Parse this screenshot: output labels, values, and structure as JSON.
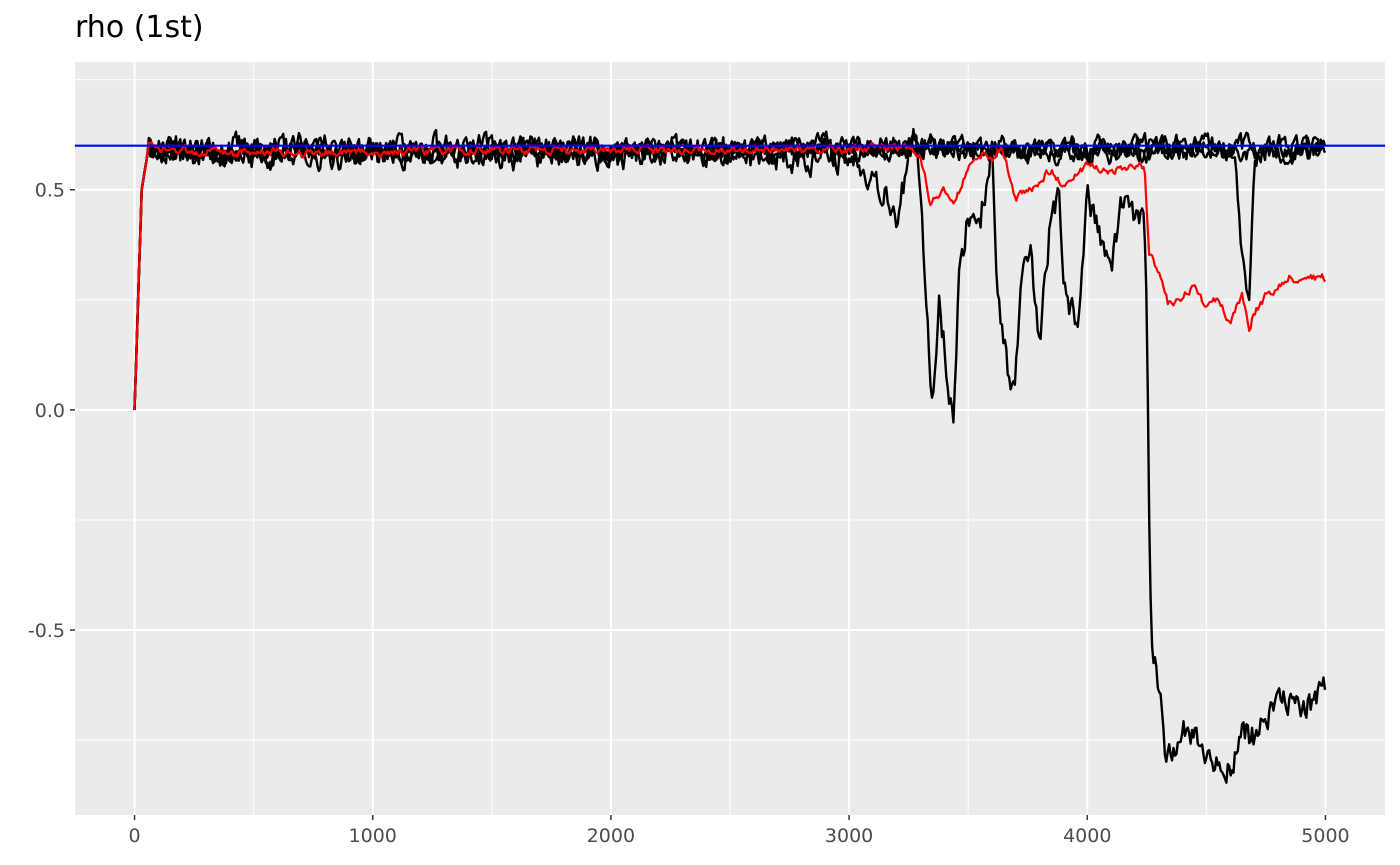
{
  "chart_data": {
    "type": "line",
    "title": "rho (1st)",
    "xlabel": "",
    "ylabel": "",
    "xlim": [
      -250,
      5250
    ],
    "ylim": [
      -0.92,
      0.79
    ],
    "x_ticks": [
      0,
      1000,
      2000,
      3000,
      4000,
      5000
    ],
    "x_tick_labels": [
      "0",
      "1000",
      "2000",
      "3000",
      "4000",
      "5000"
    ],
    "y_ticks": [
      -0.5,
      0.0,
      0.5
    ],
    "y_tick_labels": [
      "-0.5",
      "0.0",
      "0.5"
    ],
    "grid": true,
    "legend": "none",
    "reference_line": {
      "y": 0.6,
      "color": "#0000FF"
    },
    "colors": {
      "panel": "#EBEBEB",
      "grid": "#FFFFFF",
      "chains": "#000000",
      "mean": "#FF0000",
      "reference": "#0000FF"
    },
    "series": [
      {
        "color": "#000000",
        "noise": 0.018,
        "seed": 11,
        "x": [
          0,
          30,
          60,
          100,
          500,
          1000,
          1500,
          2000,
          2500,
          3000,
          3300,
          3600,
          4000,
          4500,
          5000
        ],
        "values": [
          0.0,
          0.5,
          0.6,
          0.59,
          0.585,
          0.585,
          0.59,
          0.59,
          0.59,
          0.59,
          0.59,
          0.59,
          0.585,
          0.585,
          0.585
        ]
      },
      {
        "color": "#000000",
        "noise": 0.022,
        "seed": 23,
        "x": [
          0,
          30,
          60,
          100,
          500,
          1000,
          1300,
          1500,
          2000,
          2500,
          3000,
          3300,
          3600,
          4000,
          4400,
          4600,
          5000
        ],
        "values": [
          0.0,
          0.5,
          0.6,
          0.59,
          0.585,
          0.59,
          0.6,
          0.6,
          0.595,
          0.59,
          0.6,
          0.6,
          0.59,
          0.59,
          0.595,
          0.6,
          0.59
        ]
      },
      {
        "color": "#000000",
        "noise": 0.03,
        "seed": 37,
        "x": [
          0,
          30,
          60,
          100,
          1000,
          2000,
          2800,
          3050,
          3150,
          3200,
          3280,
          3330,
          3350,
          3380,
          3400,
          3420,
          3440,
          3460,
          3500,
          3550,
          3600,
          3620,
          3650,
          3680,
          3700,
          3720,
          3760,
          3800,
          3840,
          3880,
          3900,
          3960,
          4000,
          4050,
          4100,
          4150,
          4200,
          4240,
          4250,
          4260,
          4270,
          4290,
          4330,
          4400,
          4450,
          4500,
          4560,
          4600,
          4650,
          4700,
          4750,
          4800,
          4850,
          4900,
          4950,
          5000
        ],
        "values": [
          0.0,
          0.5,
          0.6,
          0.59,
          0.585,
          0.58,
          0.58,
          0.57,
          0.5,
          0.45,
          0.62,
          0.2,
          0.02,
          0.26,
          0.15,
          0.05,
          0.0,
          0.28,
          0.45,
          0.43,
          0.6,
          0.25,
          0.17,
          0.02,
          0.08,
          0.25,
          0.35,
          0.16,
          0.4,
          0.48,
          0.25,
          0.2,
          0.5,
          0.4,
          0.32,
          0.47,
          0.43,
          0.42,
          0.2,
          -0.3,
          -0.52,
          -0.57,
          -0.78,
          -0.72,
          -0.74,
          -0.78,
          -0.82,
          -0.8,
          -0.74,
          -0.74,
          -0.7,
          -0.68,
          -0.65,
          -0.69,
          -0.66,
          -0.65
        ]
      },
      {
        "color": "#000000",
        "noise": 0.02,
        "seed": 51,
        "x": [
          0,
          30,
          60,
          100,
          1000,
          2000,
          2600,
          3000,
          3300,
          3600,
          4000,
          4400,
          4550,
          4620,
          4650,
          4680,
          4700,
          4750,
          5000
        ],
        "values": [
          0.0,
          0.5,
          0.6,
          0.59,
          0.585,
          0.585,
          0.59,
          0.59,
          0.59,
          0.59,
          0.58,
          0.6,
          0.6,
          0.55,
          0.35,
          0.25,
          0.55,
          0.6,
          0.6
        ]
      },
      {
        "color": "#FF0000",
        "noise": 0.008,
        "seed": 73,
        "x": [
          0,
          30,
          60,
          100,
          500,
          1000,
          1500,
          2000,
          2500,
          3000,
          3200,
          3300,
          3340,
          3400,
          3440,
          3480,
          3520,
          3560,
          3600,
          3640,
          3700,
          3760,
          3800,
          3850,
          3900,
          3950,
          4000,
          4100,
          4200,
          4240,
          4260,
          4300,
          4340,
          4400,
          4450,
          4500,
          4550,
          4600,
          4650,
          4680,
          4700,
          4750,
          4800,
          4850,
          4900,
          4950,
          5000
        ],
        "values": [
          0.0,
          0.5,
          0.6,
          0.59,
          0.585,
          0.585,
          0.59,
          0.59,
          0.59,
          0.59,
          0.6,
          0.58,
          0.47,
          0.5,
          0.46,
          0.52,
          0.57,
          0.58,
          0.57,
          0.6,
          0.48,
          0.5,
          0.52,
          0.55,
          0.51,
          0.53,
          0.56,
          0.54,
          0.56,
          0.55,
          0.35,
          0.32,
          0.24,
          0.26,
          0.28,
          0.23,
          0.25,
          0.2,
          0.26,
          0.18,
          0.22,
          0.26,
          0.28,
          0.3,
          0.29,
          0.3,
          0.3
        ]
      }
    ]
  }
}
